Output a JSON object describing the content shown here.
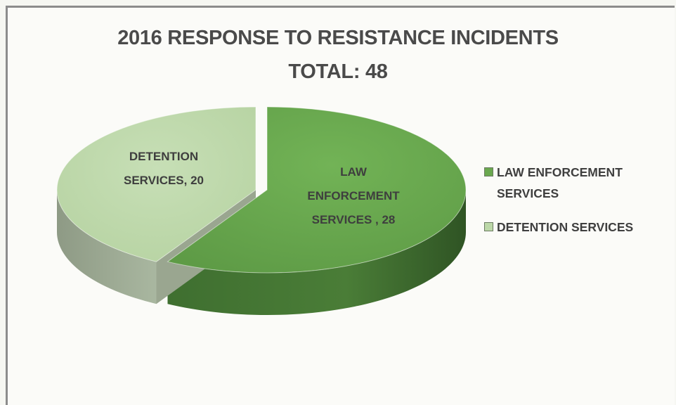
{
  "chart_data": {
    "type": "pie",
    "title": "2016 RESPONSE TO RESISTANCE INCIDENTS",
    "subtitle": "TOTAL: 48",
    "slices": [
      {
        "label": "LAW ENFORCEMENT SERVICES",
        "data_label": "LAW ENFORCEMENT SERVICES , 28",
        "value": 28,
        "color": "#6aa84f"
      },
      {
        "label": "DETENTION SERVICES",
        "data_label": "DETENTION SERVICES, 20",
        "value": 20,
        "color": "#bcd8a8"
      }
    ],
    "legend_position": "right",
    "style": "3d-exploded"
  }
}
